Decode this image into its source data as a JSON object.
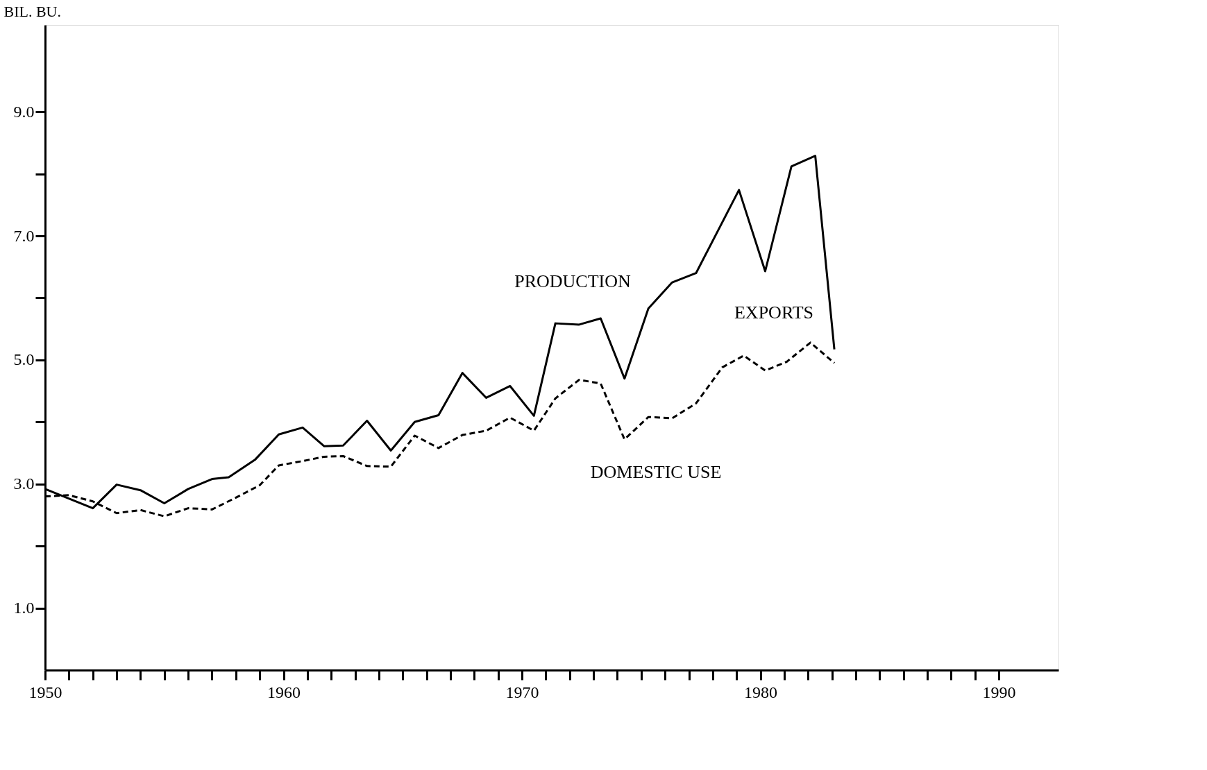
{
  "chart_data": {
    "type": "line",
    "ylabel": "BIL. BU.",
    "xlim": [
      1950,
      1992.5
    ],
    "ylim": [
      0,
      10.4
    ],
    "xticks": [
      1950,
      {
        "value": 1951,
        "label": null
      },
      {
        "value": 1952,
        "label": null
      },
      {
        "value": 1953,
        "label": null
      },
      {
        "value": 1954,
        "label": null
      },
      {
        "value": 1955,
        "label": null
      },
      {
        "value": 1956,
        "label": null
      },
      {
        "value": 1957,
        "label": null
      },
      {
        "value": 1958,
        "label": null
      },
      {
        "value": 1959,
        "label": null
      },
      1960,
      {
        "value": 1961,
        "label": null
      },
      {
        "value": 1962,
        "label": null
      },
      {
        "value": 1963,
        "label": null
      },
      {
        "value": 1964,
        "label": null
      },
      {
        "value": 1965,
        "label": null
      },
      {
        "value": 1966,
        "label": null
      },
      {
        "value": 1967,
        "label": null
      },
      {
        "value": 1968,
        "label": null
      },
      {
        "value": 1969,
        "label": null
      },
      1970,
      {
        "value": 1971,
        "label": null
      },
      {
        "value": 1972,
        "label": null
      },
      {
        "value": 1973,
        "label": null
      },
      {
        "value": 1974,
        "label": null
      },
      {
        "value": 1975,
        "label": null
      },
      {
        "value": 1976,
        "label": null
      },
      {
        "value": 1977,
        "label": null
      },
      {
        "value": 1978,
        "label": null
      },
      {
        "value": 1979,
        "label": null
      },
      1980,
      {
        "value": 1981,
        "label": null
      },
      {
        "value": 1982,
        "label": null
      },
      {
        "value": 1983,
        "label": null
      },
      {
        "value": 1984,
        "label": null
      },
      {
        "value": 1985,
        "label": null
      },
      {
        "value": 1986,
        "label": null
      },
      {
        "value": 1987,
        "label": null
      },
      {
        "value": 1988,
        "label": null
      },
      {
        "value": 1989,
        "label": null
      },
      1990
    ],
    "yticks": [
      {
        "value": 1,
        "label": "1.0"
      },
      {
        "value": 2,
        "label": null
      },
      {
        "value": 3,
        "label": "3.0"
      },
      {
        "value": 4,
        "label": null
      },
      {
        "value": 5,
        "label": "5.0"
      },
      {
        "value": 6,
        "label": null
      },
      {
        "value": 7,
        "label": "7.0"
      },
      {
        "value": 8,
        "label": null
      },
      {
        "value": 9,
        "label": "9.0"
      }
    ],
    "grid": false,
    "marker": "none",
    "series": [
      {
        "color": "#000000",
        "line_style": "solid",
        "x": [
          1950,
          1952.0,
          1953.0,
          1954.0,
          1955.0,
          1956.0,
          1957.0,
          1957.7,
          1958.8,
          1959.8,
          1960.8,
          1961.7,
          1962.5,
          1963.5,
          1964.5,
          1965.5,
          1966.5,
          1967.5,
          1968.5,
          1969.5,
          1970.5,
          1971.4,
          1972.4,
          1973.3,
          1974.3,
          1975.3,
          1976.3,
          1977.3,
          1979.1,
          1980.2,
          1981.3,
          1982.3,
          1983.1
        ],
        "values": [
          2.92,
          2.61,
          2.99,
          2.9,
          2.69,
          2.92,
          3.08,
          3.11,
          3.39,
          3.8,
          3.91,
          3.61,
          3.62,
          4.02,
          3.54,
          4.0,
          4.11,
          4.79,
          4.39,
          4.58,
          4.1,
          5.59,
          5.57,
          5.67,
          4.7,
          5.83,
          6.25,
          6.4,
          7.74,
          6.43,
          8.12,
          8.29,
          5.17
        ]
      },
      {
        "color": "#000000",
        "line_style": "dashed",
        "x": [
          1950,
          1951,
          1952,
          1953,
          1954,
          1955,
          1956,
          1957,
          1958,
          1959,
          1959.8,
          1960.8,
          1961.7,
          1962.5,
          1963.5,
          1964.5,
          1965.5,
          1966.5,
          1967.5,
          1968.5,
          1969.5,
          1970.5,
          1971.4,
          1972.4,
          1973.3,
          1974.3,
          1975.3,
          1976.3,
          1977.3,
          1978.4,
          1979.3,
          1980.2,
          1981.1,
          1982.1,
          1983.1
        ],
        "values": [
          2.8,
          2.82,
          2.72,
          2.53,
          2.58,
          2.48,
          2.61,
          2.59,
          2.78,
          2.98,
          3.3,
          3.37,
          3.44,
          3.45,
          3.29,
          3.28,
          3.78,
          3.58,
          3.79,
          3.86,
          4.07,
          3.86,
          4.38,
          4.68,
          4.62,
          3.72,
          4.08,
          4.06,
          4.3,
          4.88,
          5.07,
          4.83,
          4.97,
          5.28,
          4.95
        ]
      }
    ],
    "annotations": [
      "PRODUCTION",
      "EXPORTS",
      "DOMESTIC USE"
    ]
  }
}
